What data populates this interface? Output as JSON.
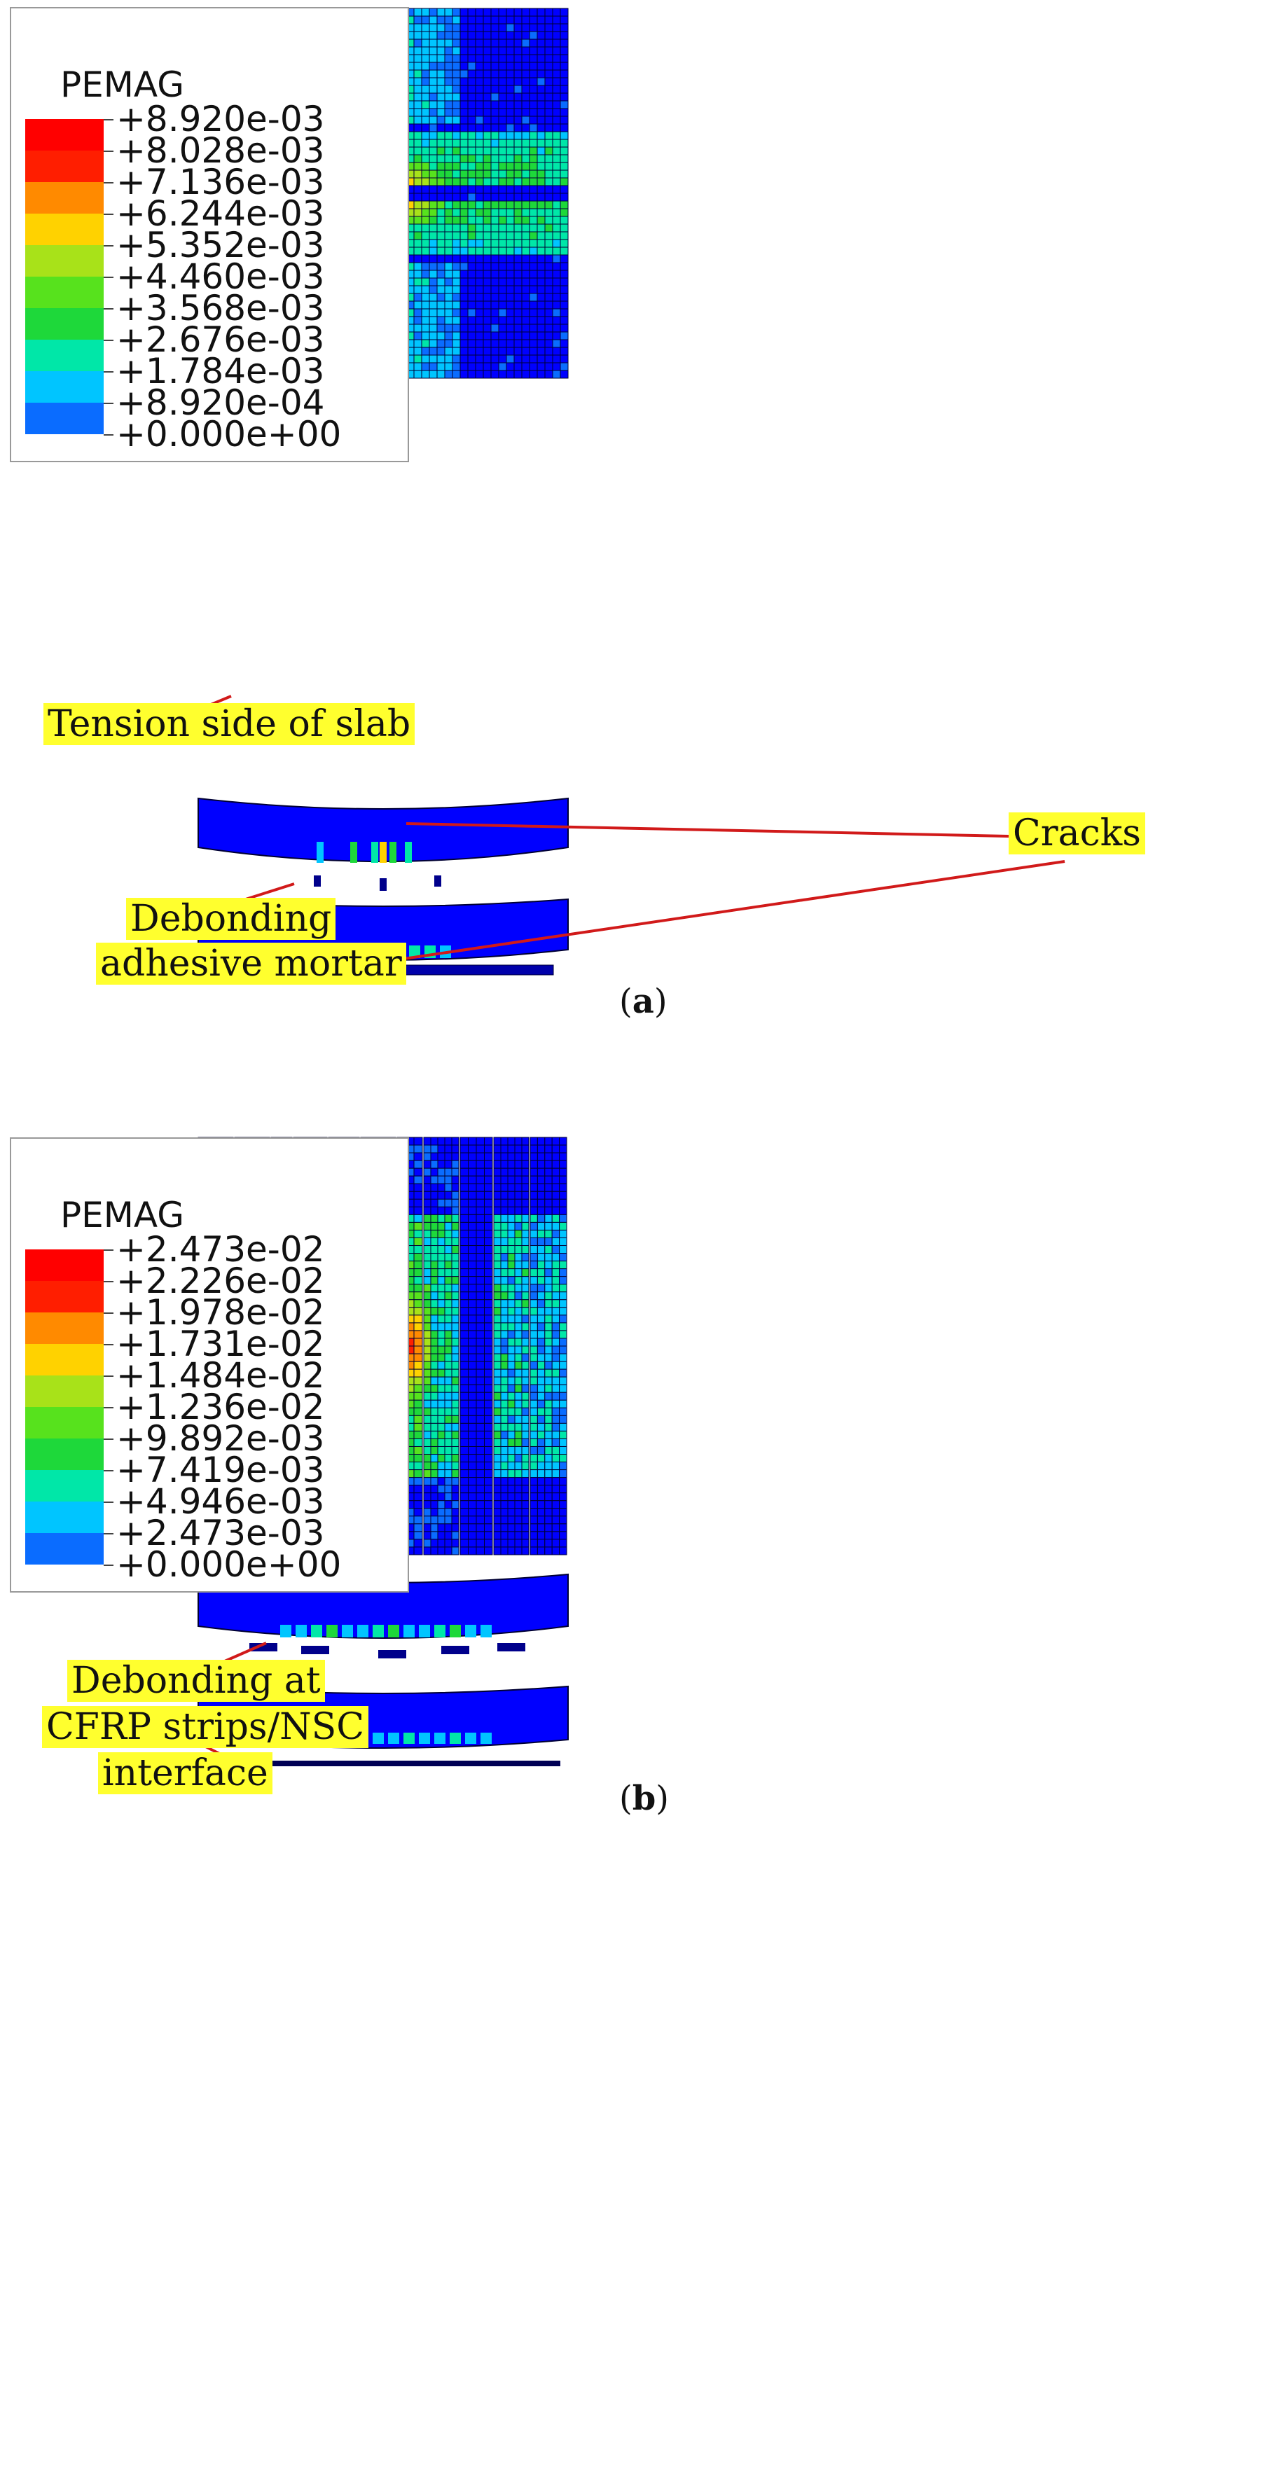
{
  "colors": {
    "legend_scale": [
      "#0000ff",
      "#0a6cff",
      "#00c5ff",
      "#00e7a8",
      "#1ed83a",
      "#57e21d",
      "#a8e219",
      "#ffd200",
      "#ff8a00",
      "#ff1e00",
      "#ff0000"
    ],
    "callout_bg": "#ffff2e",
    "arrow": "#d11a1a"
  },
  "panel_a": {
    "caption_letter": "a",
    "legend": {
      "title": "PEMAG",
      "labels": [
        "+8.920e-03",
        "+8.028e-03",
        "+7.136e-03",
        "+6.244e-03",
        "+5.352e-03",
        "+4.460e-03",
        "+3.568e-03",
        "+2.676e-03",
        "+1.784e-03",
        "+8.920e-04",
        "+0.000e+00"
      ]
    },
    "callouts": {
      "tension": "Tension side of slab",
      "cracks": "Cracks",
      "debond_line1": "Debonding",
      "debond_line2": "adhesive mortar"
    }
  },
  "panel_b": {
    "caption_letter": "b",
    "legend": {
      "title": "PEMAG",
      "labels": [
        "+2.473e-02",
        "+2.226e-02",
        "+1.978e-02",
        "+1.731e-02",
        "+1.484e-02",
        "+1.236e-02",
        "+9.892e-03",
        "+7.419e-03",
        "+4.946e-03",
        "+2.473e-03",
        "+0.000e+00"
      ]
    },
    "callouts": {
      "line1": "Debonding at",
      "line2": "CFRP strips/NSC",
      "line3": "interface"
    }
  }
}
